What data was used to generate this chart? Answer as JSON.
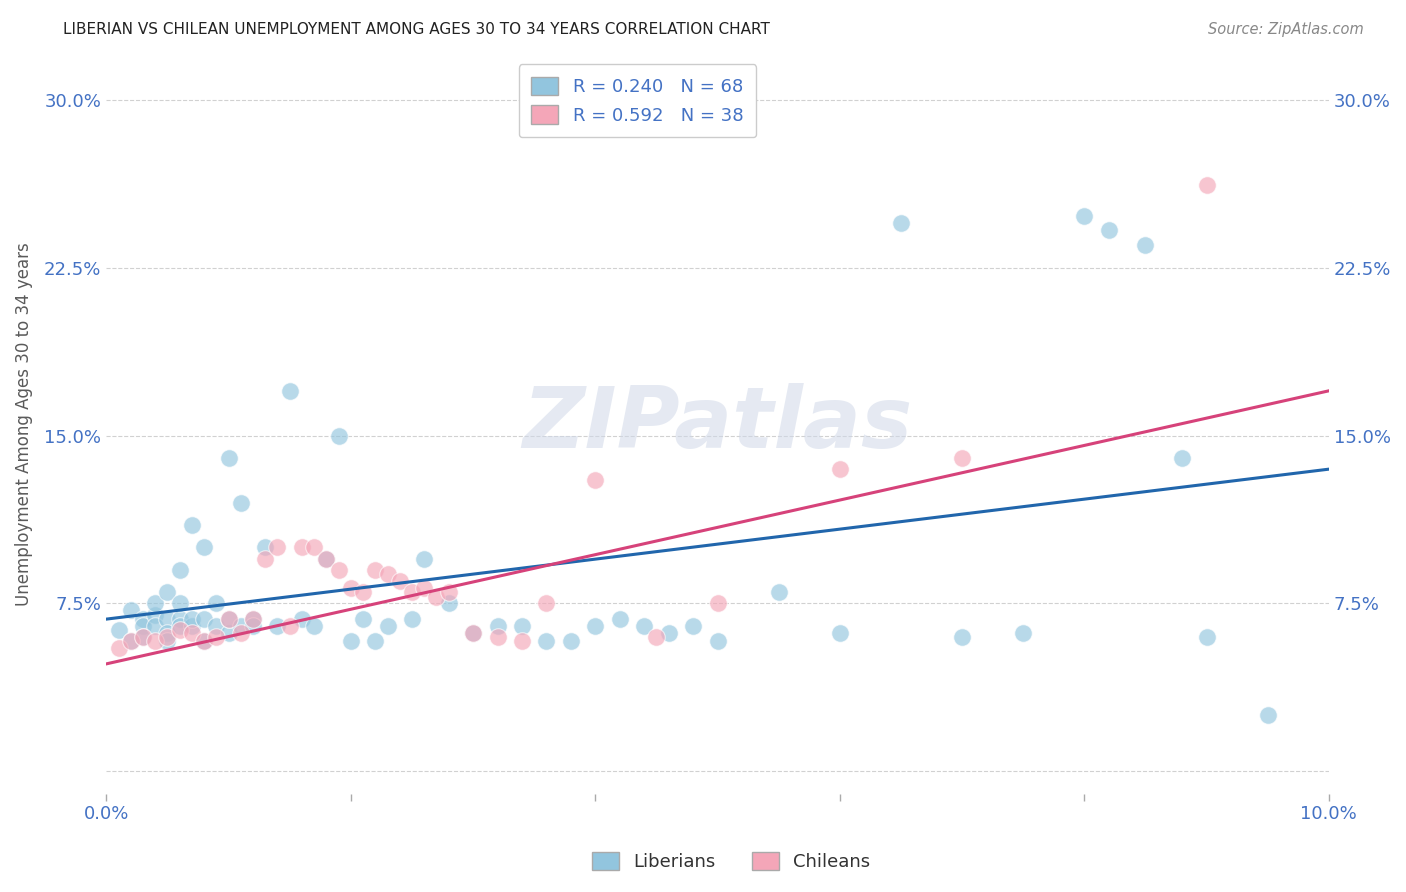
{
  "title": "LIBERIAN VS CHILEAN UNEMPLOYMENT AMONG AGES 30 TO 34 YEARS CORRELATION CHART",
  "source": "Source: ZipAtlas.com",
  "ylabel": "Unemployment Among Ages 30 to 34 years",
  "xlim": [
    0.0,
    0.1
  ],
  "ylim": [
    -0.01,
    0.32
  ],
  "xticks": [
    0.0,
    0.02,
    0.04,
    0.06,
    0.08,
    0.1
  ],
  "yticks": [
    0.0,
    0.075,
    0.15,
    0.225,
    0.3
  ],
  "ytick_labels": [
    "",
    "7.5%",
    "15.0%",
    "22.5%",
    "30.0%"
  ],
  "xtick_labels": [
    "0.0%",
    "",
    "",
    "",
    "",
    "10.0%"
  ],
  "blue_color": "#92c5de",
  "pink_color": "#f4a6b8",
  "blue_line_color": "#2166ac",
  "pink_line_color": "#d6427a",
  "legend_blue_r": "R = 0.240",
  "legend_blue_n": "N = 68",
  "legend_pink_r": "R = 0.592",
  "legend_pink_n": "N = 38",
  "watermark": "ZIPatlas",
  "blue_scatter_x": [
    0.001,
    0.002,
    0.002,
    0.003,
    0.003,
    0.003,
    0.004,
    0.004,
    0.004,
    0.005,
    0.005,
    0.005,
    0.005,
    0.006,
    0.006,
    0.006,
    0.006,
    0.007,
    0.007,
    0.007,
    0.008,
    0.008,
    0.008,
    0.009,
    0.009,
    0.01,
    0.01,
    0.01,
    0.011,
    0.011,
    0.012,
    0.012,
    0.013,
    0.014,
    0.015,
    0.016,
    0.017,
    0.018,
    0.019,
    0.02,
    0.021,
    0.022,
    0.023,
    0.025,
    0.026,
    0.028,
    0.03,
    0.032,
    0.034,
    0.036,
    0.038,
    0.04,
    0.042,
    0.044,
    0.046,
    0.048,
    0.05,
    0.055,
    0.06,
    0.065,
    0.07,
    0.075,
    0.08,
    0.082,
    0.085,
    0.088,
    0.09,
    0.095
  ],
  "blue_scatter_y": [
    0.063,
    0.058,
    0.072,
    0.068,
    0.065,
    0.06,
    0.07,
    0.075,
    0.065,
    0.068,
    0.08,
    0.062,
    0.058,
    0.068,
    0.09,
    0.065,
    0.075,
    0.065,
    0.068,
    0.11,
    0.058,
    0.068,
    0.1,
    0.065,
    0.075,
    0.062,
    0.068,
    0.14,
    0.065,
    0.12,
    0.068,
    0.065,
    0.1,
    0.065,
    0.17,
    0.068,
    0.065,
    0.095,
    0.15,
    0.058,
    0.068,
    0.058,
    0.065,
    0.068,
    0.095,
    0.075,
    0.062,
    0.065,
    0.065,
    0.058,
    0.058,
    0.065,
    0.068,
    0.065,
    0.062,
    0.065,
    0.058,
    0.08,
    0.062,
    0.245,
    0.06,
    0.062,
    0.248,
    0.242,
    0.235,
    0.14,
    0.06,
    0.025
  ],
  "pink_scatter_x": [
    0.001,
    0.002,
    0.003,
    0.004,
    0.005,
    0.006,
    0.007,
    0.008,
    0.009,
    0.01,
    0.011,
    0.012,
    0.013,
    0.014,
    0.015,
    0.016,
    0.017,
    0.018,
    0.019,
    0.02,
    0.021,
    0.022,
    0.023,
    0.024,
    0.025,
    0.026,
    0.027,
    0.028,
    0.03,
    0.032,
    0.034,
    0.036,
    0.04,
    0.045,
    0.05,
    0.06,
    0.07,
    0.09
  ],
  "pink_scatter_y": [
    0.055,
    0.058,
    0.06,
    0.058,
    0.06,
    0.063,
    0.062,
    0.058,
    0.06,
    0.068,
    0.062,
    0.068,
    0.095,
    0.1,
    0.065,
    0.1,
    0.1,
    0.095,
    0.09,
    0.082,
    0.08,
    0.09,
    0.088,
    0.085,
    0.08,
    0.082,
    0.078,
    0.08,
    0.062,
    0.06,
    0.058,
    0.075,
    0.13,
    0.06,
    0.075,
    0.135,
    0.14,
    0.262
  ],
  "blue_trendline_x": [
    0.0,
    0.1
  ],
  "blue_trendline_y": [
    0.068,
    0.135
  ],
  "pink_trendline_x": [
    0.0,
    0.1
  ],
  "pink_trendline_y": [
    0.048,
    0.17
  ]
}
